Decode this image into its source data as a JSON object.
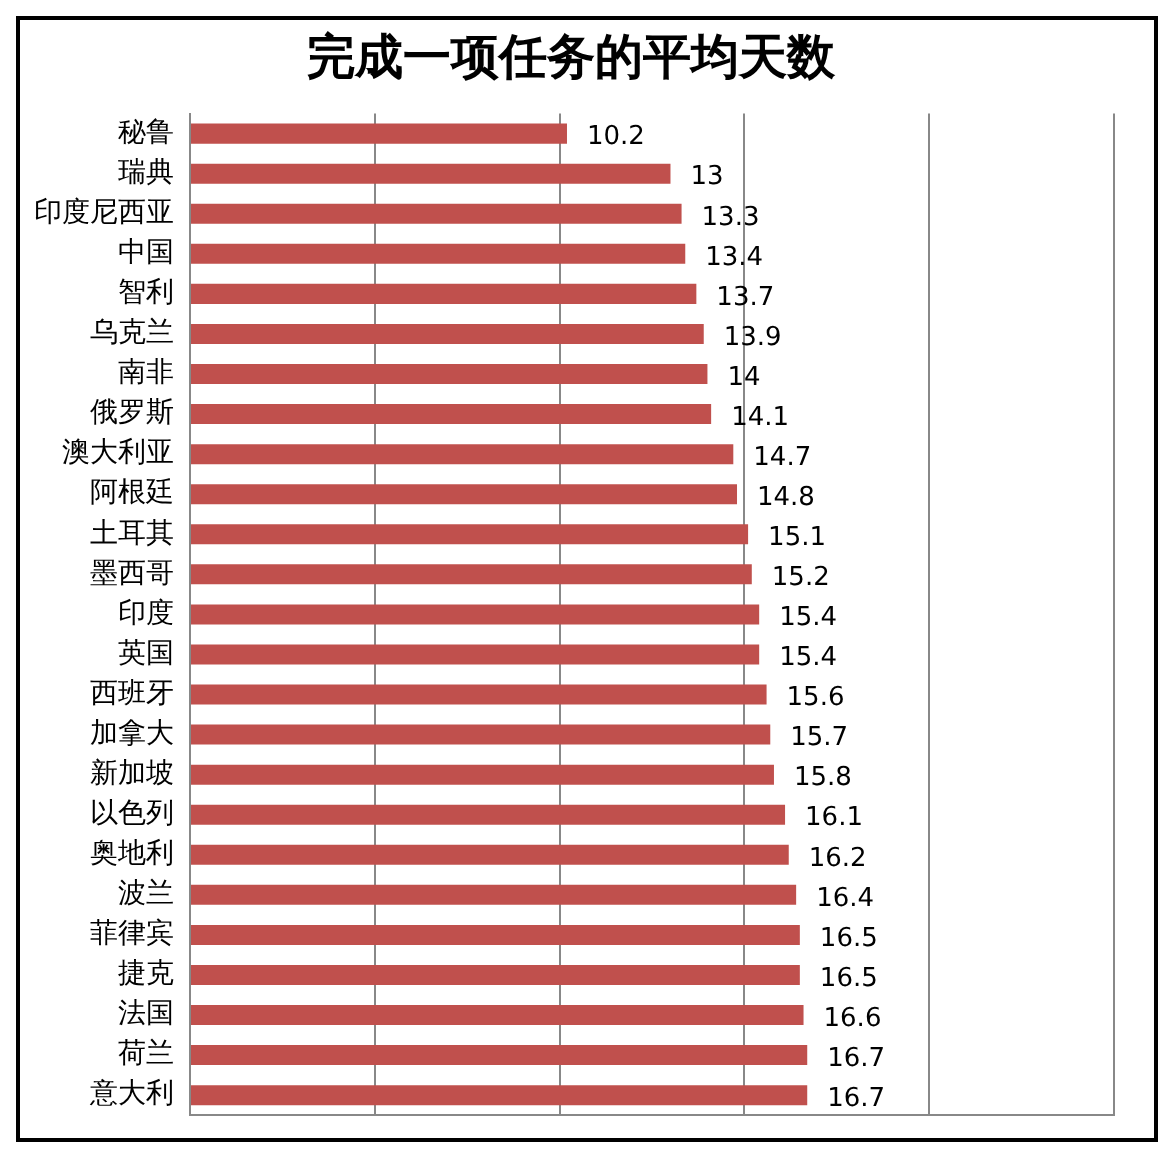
{
  "chart_data": {
    "type": "bar",
    "orientation": "horizontal",
    "title": "完成一项任务的平均天数",
    "categories": [
      "秘鲁",
      "瑞典",
      "印度尼西亚",
      "中国",
      "智利",
      "乌克兰",
      "南非",
      "俄罗斯",
      "澳大利亚",
      "阿根廷",
      "土耳其",
      "墨西哥",
      "印度",
      "英国",
      "西班牙",
      "加拿大",
      "新加坡",
      "以色列",
      "奥地利",
      "波兰",
      "菲律宾",
      "捷克",
      "法国",
      "荷兰",
      "意大利"
    ],
    "values": [
      10.2,
      13,
      13.3,
      13.4,
      13.7,
      13.9,
      14,
      14.1,
      14.7,
      14.8,
      15.1,
      15.2,
      15.4,
      15.4,
      15.6,
      15.7,
      15.8,
      16.1,
      16.2,
      16.4,
      16.5,
      16.5,
      16.6,
      16.7,
      16.7
    ],
    "color": "#c0504d",
    "xlim": [
      0,
      25
    ],
    "xticks": [
      {
        "value": 0,
        "label": null
      },
      {
        "value": 5,
        "label": null
      },
      {
        "value": 10,
        "label": null
      },
      {
        "value": 15,
        "label": null
      },
      {
        "value": 20,
        "label": null
      },
      {
        "value": 25,
        "label": null
      }
    ],
    "grid": "x",
    "tick_labels": "y",
    "data_labels": true,
    "legend": false
  }
}
